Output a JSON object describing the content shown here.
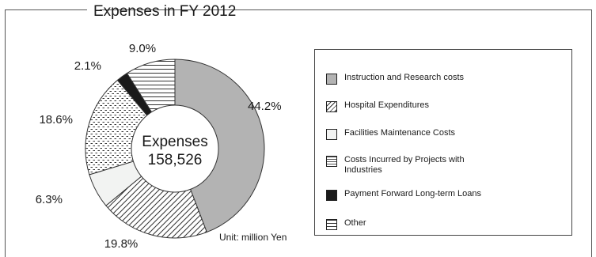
{
  "chart_data": {
    "type": "pie",
    "variant": "donut",
    "title": "Expenses in FY 2012",
    "center_label": "Expenses",
    "center_value": "158,526",
    "unit_note": "Unit: million Yen",
    "categories": [
      "Instruction and Research costs",
      "Hospital Expenditures",
      "Facilities Maintenance Costs",
      "Costs Incurred by Projects with Industries",
      "Payment Forward Long-term Loans",
      "Other"
    ],
    "values": [
      44.2,
      19.8,
      6.3,
      18.6,
      2.1,
      9.0
    ],
    "value_labels": [
      "44.2%",
      "19.8%",
      "6.3%",
      "18.6%",
      "2.1%",
      "9.0%"
    ],
    "patterns": [
      "gray",
      "diagonal",
      "light",
      "dots",
      "black",
      "horizontal"
    ],
    "colors": {
      "gray": "#b3b3b3",
      "light": "#f2f3f2",
      "black": "#1a1a1a"
    },
    "legend_position": "right"
  }
}
